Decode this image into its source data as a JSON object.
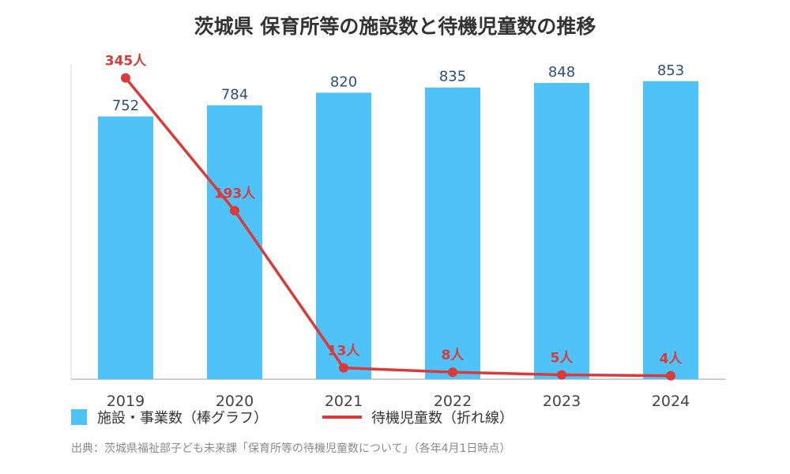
{
  "chart_data": {
    "type": "bar+line",
    "title": "茨城県 保育所等の施設数と待機児童数の推移",
    "categories": [
      "2019",
      "2020",
      "2021",
      "2022",
      "2023",
      "2024"
    ],
    "series": [
      {
        "name": "施設・事業数（棒グラフ）",
        "type": "bar",
        "color": "#4fc3f7",
        "values": [
          752,
          784,
          820,
          835,
          848,
          853
        ],
        "labels": [
          "752",
          "784",
          "820",
          "835",
          "848",
          "853"
        ]
      },
      {
        "name": "待機児童数（折れ線）",
        "type": "line",
        "color": "#d93a3a",
        "values": [
          345,
          193,
          13,
          8,
          5,
          4
        ],
        "labels": [
          "345人",
          "193人",
          "13人",
          "8人",
          "5人",
          "4人"
        ]
      }
    ],
    "bar_axis_range": [
      0,
      900
    ],
    "line_axis_range": [
      0,
      360
    ],
    "grid": false,
    "legend_position": "bottom-left"
  },
  "source": "出典：茨城県福祉部子ども未来課「保育所等の待機児童数について」（各年4月1日時点）"
}
